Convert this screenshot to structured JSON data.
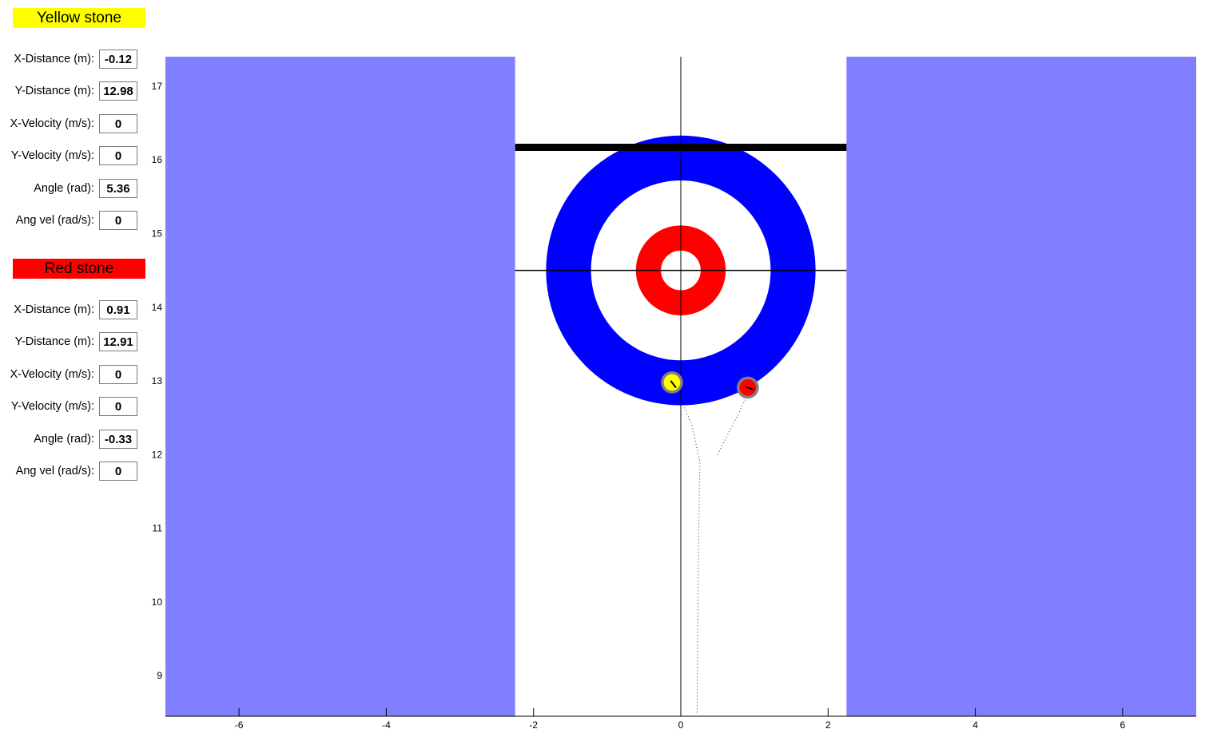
{
  "panels": [
    {
      "title": "Yellow stone",
      "color": "#ffff00",
      "fields": [
        {
          "label": "X-Distance (m):",
          "value": "-0.12"
        },
        {
          "label": "Y-Distance (m):",
          "value": "12.98"
        },
        {
          "label": "X-Velocity (m/s):",
          "value": "0"
        },
        {
          "label": "Y-Velocity (m/s):",
          "value": "0"
        },
        {
          "label": "Angle (rad):",
          "value": "5.36"
        },
        {
          "label": "Ang vel (rad/s):",
          "value": "0"
        }
      ]
    },
    {
      "title": "Red stone",
      "color": "#ff0000",
      "fields": [
        {
          "label": "X-Distance (m):",
          "value": "0.91"
        },
        {
          "label": "Y-Distance (m):",
          "value": "12.91"
        },
        {
          "label": "X-Velocity (m/s):",
          "value": "0"
        },
        {
          "label": "Y-Velocity (m/s):",
          "value": "0"
        },
        {
          "label": "Angle (rad):",
          "value": "-0.33"
        },
        {
          "label": "Ang vel (rad/s):",
          "value": "0"
        }
      ]
    }
  ],
  "sheet": {
    "xlim": [
      -7,
      7
    ],
    "ylim": [
      8.45,
      17.4
    ],
    "x_ticks": [
      -6,
      -4,
      -2,
      0,
      2,
      4,
      6
    ],
    "y_ticks": [
      9,
      10,
      11,
      12,
      13,
      14,
      15,
      16,
      17
    ],
    "tee": [
      0,
      14.5
    ],
    "hog_line_y": 16.17,
    "sheet_half_width": 2.25,
    "house_ring_radii": [
      1.83,
      1.22,
      0.61,
      0.27
    ],
    "house_ring_colors": [
      "#0000ff",
      "#ffffff",
      "#ff0000",
      "#ffffff"
    ],
    "out_of_play_color": "#8080ff",
    "stone_rim_color": "#808080",
    "stone_radius": 0.15,
    "stones": [
      {
        "name": "yellow",
        "x": -0.12,
        "y": 12.98,
        "angle": 5.36,
        "color": "#ffff00",
        "trail": [
          [
            0.22,
            8.5
          ],
          [
            0.23,
            9.5
          ],
          [
            0.24,
            10.5
          ],
          [
            0.25,
            11.5
          ],
          [
            0.26,
            11.9
          ],
          [
            0.15,
            12.4
          ],
          [
            -0.04,
            12.85
          ]
        ]
      },
      {
        "name": "red",
        "x": 0.91,
        "y": 12.91,
        "angle": -0.33,
        "color": "#ff0000",
        "trail": [
          [
            0.5,
            12.0
          ],
          [
            0.88,
            12.75
          ]
        ]
      }
    ]
  }
}
